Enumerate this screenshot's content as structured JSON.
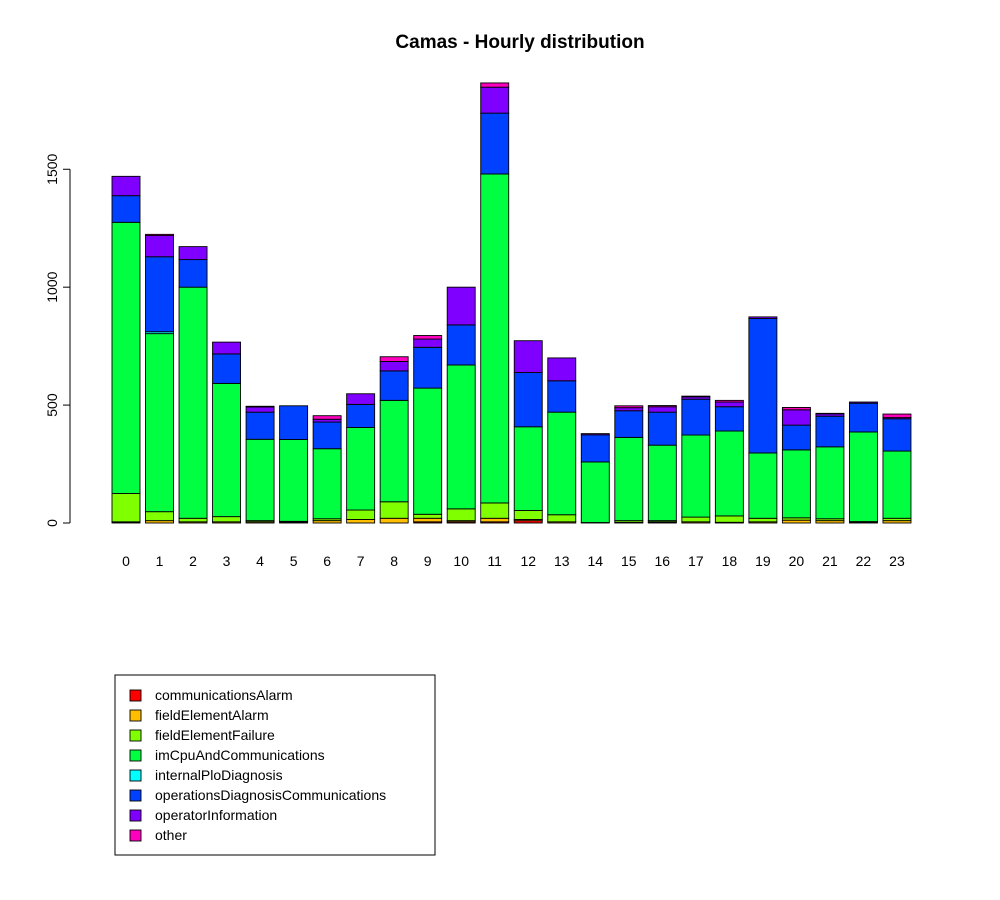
{
  "chart_data": {
    "type": "bar",
    "stacked": true,
    "title": "Camas - Hourly distribution",
    "xlabel": "",
    "ylabel": "",
    "ylim": [
      0,
      1870
    ],
    "yticks": [
      0,
      500,
      1000,
      1500
    ],
    "categories": [
      "0",
      "1",
      "2",
      "3",
      "4",
      "5",
      "6",
      "7",
      "8",
      "9",
      "10",
      "11",
      "12",
      "13",
      "14",
      "15",
      "16",
      "17",
      "18",
      "19",
      "20",
      "21",
      "22",
      "23"
    ],
    "legend_position": "bottom-left",
    "grid": false,
    "series": [
      {
        "name": "communicationsAlarm",
        "color": "#ff0000",
        "values": [
          3,
          0,
          0,
          0,
          0,
          3,
          0,
          0,
          0,
          5,
          5,
          5,
          10,
          0,
          0,
          0,
          3,
          0,
          0,
          0,
          0,
          0,
          3,
          0
        ]
      },
      {
        "name": "fieldElementAlarm",
        "color": "#ffbf00",
        "values": [
          2,
          10,
          5,
          5,
          5,
          2,
          10,
          15,
          20,
          15,
          5,
          15,
          5,
          5,
          0,
          3,
          2,
          5,
          3,
          5,
          12,
          10,
          0,
          10
        ]
      },
      {
        "name": "fieldElementFailure",
        "color": "#80ff00",
        "values": [
          120,
          38,
          15,
          22,
          5,
          2,
          8,
          40,
          70,
          17,
          50,
          65,
          38,
          30,
          2,
          7,
          5,
          20,
          27,
          15,
          10,
          8,
          3,
          10
        ]
      },
      {
        "name": "imCpuAndCommunications",
        "color": "#00ff40",
        "values": [
          1150,
          755,
          980,
          565,
          345,
          347,
          297,
          350,
          430,
          535,
          610,
          1395,
          355,
          435,
          257,
          353,
          320,
          348,
          360,
          277,
          288,
          305,
          380,
          285
        ]
      },
      {
        "name": "internalPloDiagnosis",
        "color": "#00ffff",
        "values": [
          0,
          8,
          0,
          0,
          0,
          0,
          0,
          0,
          0,
          0,
          0,
          0,
          0,
          0,
          0,
          0,
          0,
          0,
          0,
          0,
          0,
          0,
          0,
          0
        ]
      },
      {
        "name": "operationsDiagnosisCommunications",
        "color": "#0040ff",
        "values": [
          113,
          318,
          117,
          125,
          115,
          143,
          113,
          98,
          125,
          173,
          170,
          258,
          230,
          133,
          115,
          113,
          140,
          152,
          103,
          570,
          105,
          130,
          122,
          137
        ]
      },
      {
        "name": "operatorInformation",
        "color": "#8000ff",
        "values": [
          82,
          90,
          55,
          50,
          22,
          0,
          12,
          45,
          40,
          35,
          160,
          110,
          135,
          97,
          5,
          13,
          23,
          10,
          20,
          7,
          65,
          10,
          5,
          5
        ]
      },
      {
        "name": "other",
        "color": "#ff00bf",
        "values": [
          0,
          5,
          0,
          0,
          3,
          0,
          15,
          0,
          20,
          15,
          0,
          18,
          0,
          0,
          0,
          8,
          5,
          3,
          7,
          0,
          10,
          2,
          0,
          15
        ]
      }
    ]
  }
}
